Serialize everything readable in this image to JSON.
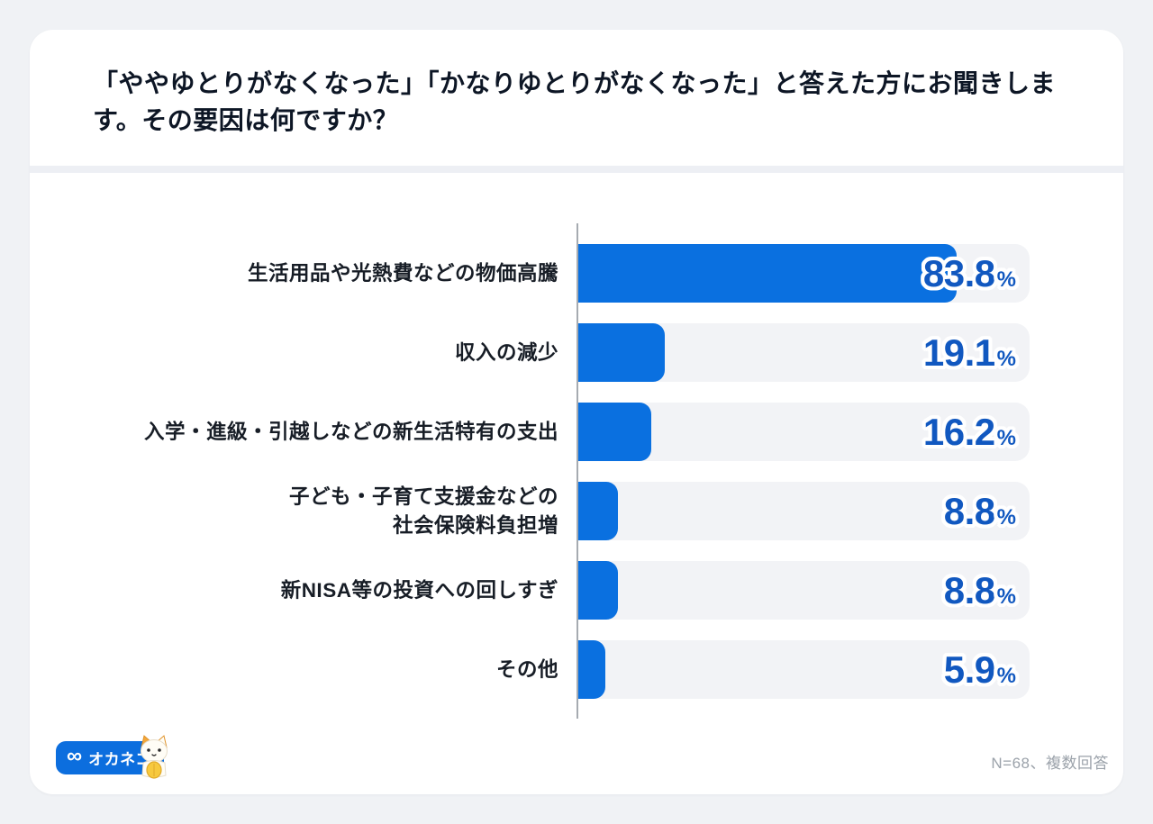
{
  "page": {
    "background_color": "#f0f2f5",
    "card_background_color": "#ffffff"
  },
  "header": {
    "title": "「ややゆとりがなくなった」「かなりゆとりがなくなった」と答えた方にお聞きします。その要因は何ですか？"
  },
  "chart_data": {
    "type": "bar",
    "orientation": "horizontal",
    "categories": [
      "生活用品や光熱費などの物価高騰",
      "収入の減少",
      "入学・進級・引越しなどの新生活特有の支出",
      "子ども・子育て支援金などの\n社会保険料負担増",
      "新NISA等の投資への回しすぎ",
      "その他"
    ],
    "values": [
      83.8,
      19.1,
      16.2,
      8.8,
      8.8,
      5.9
    ],
    "unit": "%",
    "xlim": [
      0,
      100
    ],
    "grid": false,
    "legend": "none",
    "bar_color": "#0a70e0",
    "track_color": "#f2f3f6",
    "value_color": "#1158c0"
  },
  "footer": {
    "logo_icon": "infinity-glasses-icon",
    "logo_text": "オカネコ",
    "mascot": "cat-mascot-icon",
    "note": "N=68、複数回答"
  }
}
